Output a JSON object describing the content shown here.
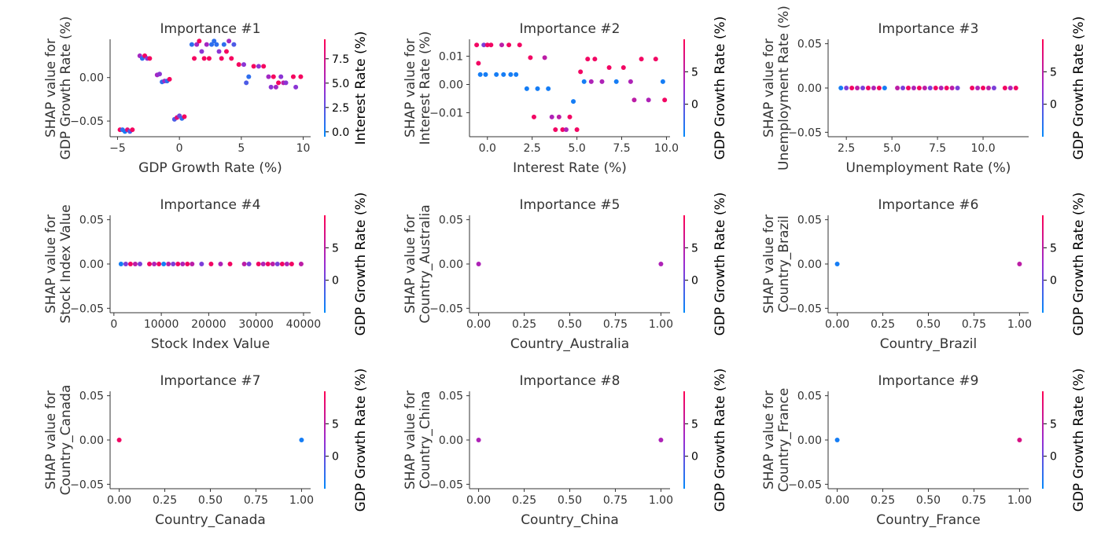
{
  "colors": {
    "low": "#008afb",
    "mid": "#9a2bd0",
    "high": "#ff0052",
    "axis": "#333333",
    "text": "#333333"
  },
  "chart_data": [
    {
      "type": "scatter",
      "title": "Importance #1",
      "xlabel": "GDP Growth Rate (%)",
      "ylabel": [
        "SHAP value for",
        "GDP Growth Rate (%)"
      ],
      "xlim": [
        -5.6,
        10.6
      ],
      "ylim": [
        -0.068,
        0.044
      ],
      "xticks": [
        -5,
        0,
        5,
        10
      ],
      "xticklabels": [
        "−5",
        "0",
        "5",
        "10"
      ],
      "yticks": [
        -0.05,
        0.0
      ],
      "yticklabels": [
        "−0.05",
        "0.00"
      ],
      "colorbar": {
        "label": "Interest Rate (%)",
        "range": [
          -0.5,
          9.5
        ],
        "ticks": [
          0,
          2.5,
          5,
          7.5
        ],
        "ticklabels": [
          "0.0",
          "2.5",
          "5.0",
          "7.5"
        ]
      },
      "points": [
        [
          -4.8,
          -0.06,
          9
        ],
        [
          -4.6,
          -0.06,
          1
        ],
        [
          -4.4,
          -0.062,
          0.3
        ],
        [
          -4.2,
          -0.06,
          8
        ],
        [
          -4.0,
          -0.062,
          2
        ],
        [
          -3.8,
          -0.06,
          9
        ],
        [
          -3.2,
          0.025,
          5
        ],
        [
          -3.0,
          0.022,
          1
        ],
        [
          -2.8,
          0.025,
          9
        ],
        [
          -2.6,
          0.022,
          4
        ],
        [
          -2.4,
          0.022,
          9
        ],
        [
          -1.8,
          0.003,
          5
        ],
        [
          -1.6,
          0.004,
          4
        ],
        [
          -1.4,
          -0.005,
          1
        ],
        [
          -1.2,
          -0.004,
          5
        ],
        [
          -1.0,
          -0.004,
          1
        ],
        [
          -0.8,
          -0.002,
          9
        ],
        [
          -0.4,
          -0.048,
          2
        ],
        [
          -0.2,
          -0.046,
          8
        ],
        [
          0.0,
          -0.044,
          3
        ],
        [
          0.2,
          -0.047,
          1
        ],
        [
          0.4,
          -0.045,
          9
        ],
        [
          1.0,
          0.038,
          1
        ],
        [
          1.2,
          0.022,
          9
        ],
        [
          1.4,
          0.038,
          5
        ],
        [
          1.6,
          0.042,
          9
        ],
        [
          1.8,
          0.03,
          4
        ],
        [
          2.0,
          0.022,
          9
        ],
        [
          2.2,
          0.038,
          5
        ],
        [
          2.4,
          0.022,
          9
        ],
        [
          2.6,
          0.038,
          1
        ],
        [
          2.8,
          0.042,
          1
        ],
        [
          3.0,
          0.038,
          1
        ],
        [
          3.2,
          0.03,
          4
        ],
        [
          3.4,
          0.022,
          9
        ],
        [
          3.6,
          0.038,
          1
        ],
        [
          3.8,
          0.03,
          9
        ],
        [
          4.0,
          0.042,
          5
        ],
        [
          4.2,
          0.022,
          9
        ],
        [
          4.4,
          0.038,
          2
        ],
        [
          4.8,
          0.015,
          9
        ],
        [
          5.2,
          0.015,
          4
        ],
        [
          5.4,
          -0.006,
          2
        ],
        [
          5.6,
          0.001,
          1
        ],
        [
          6.0,
          0.013,
          9
        ],
        [
          6.4,
          0.013,
          4
        ],
        [
          6.8,
          0.013,
          9
        ],
        [
          7.2,
          0.001,
          5
        ],
        [
          7.4,
          -0.011,
          4
        ],
        [
          7.6,
          0.001,
          9
        ],
        [
          7.8,
          -0.011,
          5
        ],
        [
          8.0,
          -0.006,
          9
        ],
        [
          8.2,
          0.001,
          4
        ],
        [
          8.4,
          -0.006,
          6
        ],
        [
          8.6,
          -0.006,
          4
        ],
        [
          9.2,
          0.001,
          9
        ],
        [
          9.4,
          -0.011,
          4
        ],
        [
          9.8,
          0.001,
          9
        ]
      ]
    },
    {
      "type": "scatter",
      "title": "Importance #2",
      "xlabel": "Interest Rate (%)",
      "ylabel": [
        "SHAP value for",
        "Interest Rate (%)"
      ],
      "xlim": [
        -1.0,
        10.2
      ],
      "ylim": [
        -0.0185,
        0.016
      ],
      "xticks": [
        0,
        2.5,
        5,
        7.5,
        10
      ],
      "xticklabels": [
        "0.0",
        "2.5",
        "5.0",
        "7.5",
        "10.0"
      ],
      "yticks": [
        -0.01,
        0.0,
        0.01
      ],
      "yticklabels": [
        "−0.01",
        "0.00",
        "0.01"
      ],
      "colorbar": {
        "label": "GDP Growth Rate (%)",
        "range": [
          -5,
          10
        ],
        "ticks": [
          0,
          5
        ],
        "ticklabels": [
          "0",
          "5"
        ]
      },
      "points": [
        [
          -0.6,
          0.014,
          9
        ],
        [
          -0.5,
          0.0075,
          9
        ],
        [
          -0.4,
          0.0035,
          -4
        ],
        [
          -0.2,
          0.014,
          1
        ],
        [
          -0.1,
          0.0035,
          -4
        ],
        [
          0.0,
          0.014,
          9
        ],
        [
          0.2,
          0.014,
          9
        ],
        [
          0.5,
          0.0035,
          -4
        ],
        [
          0.8,
          0.014,
          5
        ],
        [
          0.9,
          0.0035,
          -4
        ],
        [
          1.2,
          0.014,
          9
        ],
        [
          1.3,
          0.0035,
          -4
        ],
        [
          1.6,
          0.0035,
          -4
        ],
        [
          1.8,
          0.014,
          9
        ],
        [
          2.2,
          -0.0015,
          -4
        ],
        [
          2.4,
          0.0095,
          9
        ],
        [
          2.6,
          -0.0115,
          9
        ],
        [
          2.8,
          -0.0015,
          -4
        ],
        [
          3.2,
          0.0095,
          5
        ],
        [
          3.4,
          -0.0015,
          -4
        ],
        [
          3.6,
          -0.0115,
          4
        ],
        [
          3.8,
          -0.016,
          9
        ],
        [
          4.0,
          -0.0115,
          5
        ],
        [
          4.2,
          -0.016,
          9
        ],
        [
          4.4,
          -0.016,
          4
        ],
        [
          4.6,
          -0.0115,
          9
        ],
        [
          4.8,
          -0.006,
          -4
        ],
        [
          5.0,
          -0.016,
          9
        ],
        [
          5.2,
          0.0045,
          9
        ],
        [
          5.4,
          0.001,
          -4
        ],
        [
          5.6,
          0.009,
          9
        ],
        [
          5.8,
          0.001,
          4
        ],
        [
          6.0,
          0.009,
          9
        ],
        [
          6.4,
          0.001,
          4
        ],
        [
          6.8,
          0.006,
          9
        ],
        [
          7.2,
          0.001,
          -4
        ],
        [
          7.6,
          0.006,
          9
        ],
        [
          8.0,
          0.001,
          4
        ],
        [
          8.2,
          -0.0055,
          5
        ],
        [
          8.6,
          0.009,
          9
        ],
        [
          9.0,
          -0.0055,
          4
        ],
        [
          9.4,
          0.009,
          9
        ],
        [
          9.8,
          0.001,
          -4
        ],
        [
          9.9,
          -0.0055,
          9
        ]
      ]
    },
    {
      "type": "scatter",
      "title": "Importance #3",
      "xlabel": "Unemployment Rate (%)",
      "ylabel": [
        "SHAP value for",
        "Unemployment Rate (%)"
      ],
      "xlim": [
        1.5,
        12.5
      ],
      "ylim": [
        -0.055,
        0.055
      ],
      "xticks": [
        2.5,
        5,
        7.5,
        10
      ],
      "xticklabels": [
        "2.5",
        "5.0",
        "7.5",
        "10.0"
      ],
      "yticks": [
        -0.05,
        0.0,
        0.05
      ],
      "yticklabels": [
        "−0.05",
        "0.00",
        "0.05"
      ],
      "colorbar": {
        "label": "GDP Growth Rate (%)",
        "range": [
          -5,
          10
        ],
        "ticks": [
          0,
          5
        ],
        "ticklabels": [
          "0",
          "5"
        ]
      },
      "points_x": [
        2.2,
        2.5,
        2.8,
        3.1,
        3.4,
        3.7,
        4.0,
        4.3,
        4.6,
        5.3,
        5.6,
        5.9,
        6.2,
        6.5,
        6.8,
        7.1,
        7.4,
        7.7,
        8.0,
        8.3,
        8.6,
        9.4,
        9.7,
        10.0,
        10.3,
        10.6,
        11.2,
        11.5,
        11.8
      ]
    },
    {
      "type": "scatter",
      "title": "Importance #4",
      "xlabel": "Stock Index Value",
      "ylabel": [
        "SHAP value for",
        "Stock Index Value"
      ],
      "xlim": [
        -800,
        41500
      ],
      "ylim": [
        -0.055,
        0.055
      ],
      "xticks": [
        0,
        10000,
        20000,
        30000,
        40000
      ],
      "xticklabels": [
        "0",
        "10000",
        "20000",
        "30000",
        "40000"
      ],
      "yticks": [
        -0.05,
        0.0,
        0.05
      ],
      "yticklabels": [
        "−0.05",
        "0.00",
        "0.05"
      ],
      "colorbar": {
        "label": "GDP Growth Rate (%)",
        "range": [
          -5,
          10
        ],
        "ticks": [
          0,
          5
        ],
        "ticklabels": [
          "0",
          "5"
        ]
      },
      "points_x": [
        1500,
        2500,
        3500,
        4500,
        5500,
        7500,
        8500,
        9500,
        10500,
        11500,
        12500,
        13500,
        14500,
        15500,
        16500,
        18500,
        20500,
        22500,
        24500,
        27500,
        28500,
        30500,
        31500,
        32500,
        33500,
        34500,
        35500,
        36500,
        37500,
        39500
      ]
    },
    {
      "type": "scatter",
      "title": "Importance #5",
      "xlabel": "Country_Australia",
      "ylabel": [
        "SHAP value for",
        "Country_Australia"
      ],
      "xlim": [
        -0.05,
        1.05
      ],
      "ylim": [
        -0.055,
        0.055
      ],
      "xticks": [
        0,
        0.25,
        0.5,
        0.75,
        1.0
      ],
      "xticklabels": [
        "0.00",
        "0.25",
        "0.50",
        "0.75",
        "1.00"
      ],
      "yticks": [
        -0.05,
        0.0,
        0.05
      ],
      "yticklabels": [
        "−0.05",
        "0.00",
        "0.05"
      ],
      "colorbar": {
        "label": "GDP Growth Rate (%)",
        "range": [
          -5,
          10
        ],
        "ticks": [
          0,
          5
        ],
        "ticklabels": [
          "0",
          "5"
        ]
      },
      "points": [
        [
          0,
          0,
          4
        ],
        [
          1,
          0,
          4
        ]
      ]
    },
    {
      "type": "scatter",
      "title": "Importance #6",
      "xlabel": "Country_Brazil",
      "ylabel": [
        "SHAP value for",
        "Country_Brazil"
      ],
      "xlim": [
        -0.05,
        1.05
      ],
      "ylim": [
        -0.055,
        0.055
      ],
      "xticks": [
        0,
        0.25,
        0.5,
        0.75,
        1.0
      ],
      "xticklabels": [
        "0.00",
        "0.25",
        "0.50",
        "0.75",
        "1.00"
      ],
      "yticks": [
        -0.05,
        0.0,
        0.05
      ],
      "yticklabels": [
        "−0.05",
        "0.00",
        "0.05"
      ],
      "colorbar": {
        "label": "GDP Growth Rate (%)",
        "range": [
          -5,
          10
        ],
        "ticks": [
          0,
          5
        ],
        "ticklabels": [
          "0",
          "5"
        ]
      },
      "points": [
        [
          0,
          0,
          -4
        ],
        [
          1,
          0,
          5
        ]
      ]
    },
    {
      "type": "scatter",
      "title": "Importance #7",
      "xlabel": "Country_Canada",
      "ylabel": [
        "SHAP value for",
        "Country_Canada"
      ],
      "xlim": [
        -0.05,
        1.05
      ],
      "ylim": [
        -0.055,
        0.055
      ],
      "xticks": [
        0,
        0.25,
        0.5,
        0.75,
        1.0
      ],
      "xticklabels": [
        "0.00",
        "0.25",
        "0.50",
        "0.75",
        "1.00"
      ],
      "yticks": [
        -0.05,
        0.0,
        0.05
      ],
      "yticklabels": [
        "−0.05",
        "0.00",
        "0.05"
      ],
      "colorbar": {
        "label": "GDP Growth Rate (%)",
        "range": [
          -5,
          10
        ],
        "ticks": [
          0,
          5
        ],
        "ticklabels": [
          "0",
          "5"
        ]
      },
      "points": [
        [
          0,
          0,
          9
        ],
        [
          1,
          0,
          -4
        ]
      ]
    },
    {
      "type": "scatter",
      "title": "Importance #8",
      "xlabel": "Country_China",
      "ylabel": [
        "SHAP value for",
        "Country_China"
      ],
      "xlim": [
        -0.05,
        1.05
      ],
      "ylim": [
        -0.055,
        0.055
      ],
      "xticks": [
        0,
        0.25,
        0.5,
        0.75,
        1.0
      ],
      "xticklabels": [
        "0.00",
        "0.25",
        "0.50",
        "0.75",
        "1.00"
      ],
      "yticks": [
        -0.05,
        0.0,
        0.05
      ],
      "yticklabels": [
        "−0.05",
        "0.00",
        "0.05"
      ],
      "colorbar": {
        "label": "GDP Growth Rate (%)",
        "range": [
          -5,
          10
        ],
        "ticks": [
          0,
          5
        ],
        "ticklabels": [
          "0",
          "5"
        ]
      },
      "points": [
        [
          0,
          0,
          4
        ],
        [
          1,
          0,
          4
        ]
      ]
    },
    {
      "type": "scatter",
      "title": "Importance #9",
      "xlabel": "Country_France",
      "ylabel": [
        "SHAP value for",
        "Country_France"
      ],
      "xlim": [
        -0.05,
        1.05
      ],
      "ylim": [
        -0.055,
        0.055
      ],
      "xticks": [
        0,
        0.25,
        0.5,
        0.75,
        1.0
      ],
      "xticklabels": [
        "0.00",
        "0.25",
        "0.50",
        "0.75",
        "1.00"
      ],
      "yticks": [
        -0.05,
        0.0,
        0.05
      ],
      "yticklabels": [
        "−0.05",
        "0.00",
        "0.05"
      ],
      "colorbar": {
        "label": "GDP Growth Rate (%)",
        "range": [
          -5,
          10
        ],
        "ticks": [
          0,
          5
        ],
        "ticklabels": [
          "0",
          "5"
        ]
      },
      "points": [
        [
          0,
          0,
          -4
        ],
        [
          1,
          0,
          7
        ]
      ]
    }
  ]
}
